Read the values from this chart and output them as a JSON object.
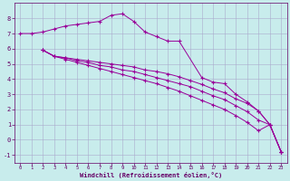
{
  "background_color": "#c8ecec",
  "grid_color": "#aaccaa",
  "line_color": "#990099",
  "xlabel": "Windchill (Refroidissement éolien,°C)",
  "xlim": [
    -0.5,
    23.5
  ],
  "ylim": [
    -1.5,
    9.0
  ],
  "xticks": [
    0,
    1,
    2,
    3,
    4,
    5,
    6,
    7,
    8,
    9,
    10,
    11,
    12,
    13,
    14,
    15,
    16,
    17,
    18,
    19,
    20,
    21,
    22,
    23
  ],
  "yticks": [
    -1,
    0,
    1,
    2,
    3,
    4,
    5,
    6,
    7,
    8
  ],
  "curve1_x": [
    0,
    1,
    2,
    3,
    4,
    5,
    6,
    7,
    8,
    9,
    10,
    11,
    12,
    13,
    14,
    16,
    17,
    18,
    19,
    20,
    21,
    22,
    23
  ],
  "curve1_y": [
    7.0,
    7.0,
    7.1,
    7.3,
    7.5,
    7.6,
    7.7,
    7.8,
    8.2,
    8.3,
    7.8,
    7.1,
    6.8,
    6.5,
    6.5,
    4.1,
    3.8,
    3.7,
    3.0,
    2.5,
    1.9,
    1.0,
    -0.8
  ],
  "curve2_x": [
    2,
    3,
    4,
    5,
    6,
    7,
    8,
    9,
    10,
    11,
    12,
    13,
    14,
    15,
    16,
    17,
    18,
    19,
    20,
    21,
    22,
    23
  ],
  "curve2_y": [
    5.9,
    5.5,
    5.4,
    5.3,
    5.2,
    5.1,
    5.0,
    4.9,
    4.8,
    4.6,
    4.5,
    4.35,
    4.15,
    3.9,
    3.65,
    3.35,
    3.1,
    2.7,
    2.4,
    1.9,
    1.0,
    -0.8
  ],
  "curve3_x": [
    2,
    3,
    4,
    5,
    6,
    7,
    8,
    9,
    10,
    11,
    12,
    13,
    14,
    15,
    16,
    17,
    18,
    19,
    20,
    21,
    22,
    23
  ],
  "curve3_y": [
    5.9,
    5.5,
    5.4,
    5.2,
    5.1,
    4.9,
    4.8,
    4.6,
    4.5,
    4.3,
    4.1,
    3.9,
    3.7,
    3.5,
    3.2,
    2.9,
    2.65,
    2.25,
    1.85,
    1.3,
    1.0,
    -0.8
  ],
  "curve4_x": [
    2,
    3,
    4,
    5,
    6,
    7,
    8,
    9,
    10,
    11,
    12,
    13,
    14,
    15,
    16,
    17,
    18,
    19,
    20,
    21,
    22,
    23
  ],
  "curve4_y": [
    5.9,
    5.5,
    5.3,
    5.1,
    4.9,
    4.7,
    4.5,
    4.3,
    4.1,
    3.9,
    3.7,
    3.45,
    3.2,
    2.9,
    2.6,
    2.3,
    2.0,
    1.6,
    1.15,
    0.6,
    1.0,
    -0.8
  ]
}
